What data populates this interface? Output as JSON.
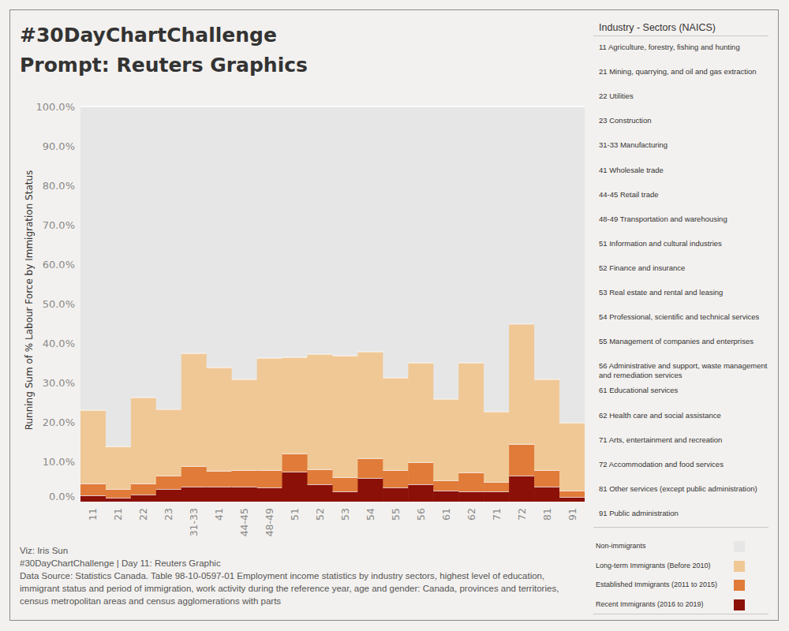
{
  "chart_data": {
    "type": "bar",
    "stacked": true,
    "title": "#30DayChartChallenge",
    "subtitle": "Prompt: Reuters Graphics",
    "y_label": "Running Sum of % Labour Force by Immigration Status",
    "categories": [
      "11",
      "21",
      "22",
      "23",
      "31-33",
      "41",
      "44-45",
      "48-49",
      "51",
      "52",
      "53",
      "54",
      "55",
      "56",
      "61",
      "62",
      "71",
      "72",
      "81",
      "91"
    ],
    "series": [
      {
        "name": "Non-immigrants",
        "color": "#e6e6e6",
        "values": [
          76.8,
          86.0,
          73.6,
          76.6,
          62.4,
          66.0,
          69.0,
          63.6,
          63.4,
          62.6,
          63.0,
          62.0,
          68.6,
          64.8,
          74.0,
          64.8,
          77.2,
          55.0,
          69.0,
          80.0
        ]
      },
      {
        "name": "Long-term Immigrants (Before 2010)",
        "color": "#f0c896",
        "values": [
          18.6,
          10.8,
          21.8,
          16.8,
          28.6,
          26.2,
          23.0,
          28.4,
          24.4,
          29.2,
          30.8,
          27.0,
          23.4,
          25.2,
          20.6,
          27.8,
          17.8,
          30.4,
          23.0,
          17.2
        ]
      },
      {
        "name": "Established Immigrants (2011 to 2015)",
        "color": "#e07b39",
        "values": [
          3.0,
          2.2,
          2.8,
          3.4,
          5.2,
          4.0,
          4.2,
          4.4,
          4.6,
          3.8,
          3.6,
          5.0,
          4.4,
          5.6,
          2.6,
          4.8,
          2.4,
          8.0,
          4.2,
          1.6
        ]
      },
      {
        "name": "Recent Immigrants (2016 to 2019)",
        "color": "#8b1007",
        "values": [
          1.6,
          1.0,
          1.8,
          3.2,
          3.8,
          3.8,
          3.8,
          3.6,
          7.6,
          4.4,
          2.6,
          6.0,
          3.6,
          4.4,
          2.8,
          2.6,
          2.6,
          6.6,
          3.8,
          1.2
        ]
      }
    ],
    "ylim": [
      0,
      100
    ],
    "yticks": [
      {
        "value": 0,
        "label": "0.0%"
      },
      {
        "value": 10,
        "label": "10.0%"
      },
      {
        "value": 20,
        "label": "20.0%"
      },
      {
        "value": 30,
        "label": "30.0%"
      },
      {
        "value": 40,
        "label": "40.0%"
      },
      {
        "value": 50,
        "label": "50.0%"
      },
      {
        "value": 60,
        "label": "60.0%"
      },
      {
        "value": 70,
        "label": "70.0%"
      },
      {
        "value": 80,
        "label": "80.0%"
      },
      {
        "value": 90,
        "label": "90.0%"
      },
      {
        "value": 100,
        "label": "100.0%"
      }
    ],
    "grid": false,
    "legend": "right",
    "legend_title": "Industry - Sectors (NAICS)",
    "category_descriptions": [
      "11 Agriculture, forestry, fishing and hunting",
      "21 Mining, quarrying, and oil and gas extraction",
      "22 Utilities",
      "23 Construction",
      "31-33 Manufacturing",
      "41 Wholesale trade",
      "44-45 Retail trade",
      "48-49 Transportation and warehousing",
      "51 Information and cultural industries",
      "52 Finance and insurance",
      "53 Real estate and rental and leasing",
      "54 Professional, scientific and technical services",
      "55 Management of companies and enterprises",
      "56 Administrative and support, waste management and remediation services",
      "61 Educational services",
      "62 Health care and social assistance",
      "71 Arts, entertainment and recreation",
      "72 Accommodation and food services",
      "81 Other services (except public administration)",
      "91 Public administration"
    ],
    "annotations": [
      "Viz: Iris Sun",
      "#30DayChartChallenge | Day 11: Reuters Graphic",
      "Data Source: Statistics Canada. Table 98-10-0597-01 Employment income statistics by industry sectors, highest level of education, immigrant status and period of immigration, work activity during the reference year, age and gender: Canada, provinces and territories, census metropolitan areas and census agglomerations with parts"
    ]
  }
}
